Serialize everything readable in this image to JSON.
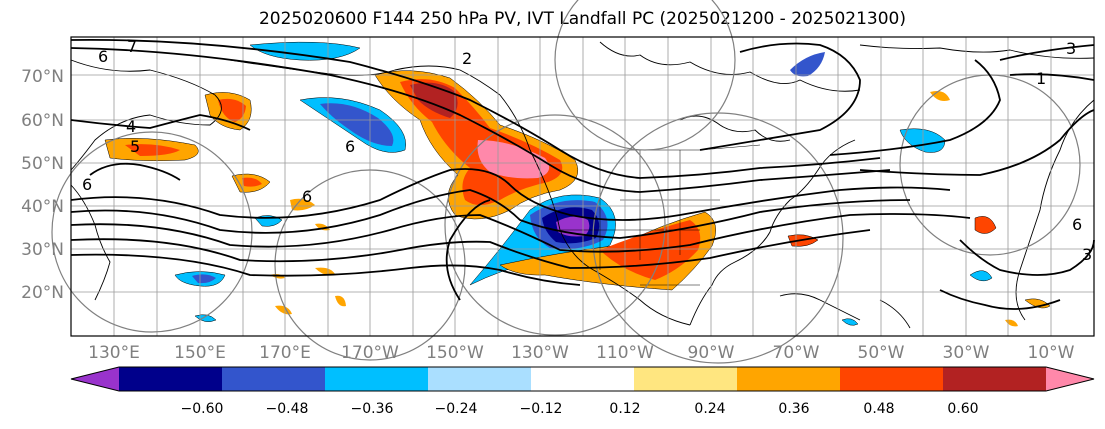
{
  "title": "2025020600 F144 250 hPa PV, IVT Landfall PC (2025021200 - 2025021300)",
  "map": {
    "lat_labels": [
      "70°N",
      "60°N",
      "50°N",
      "40°N",
      "30°N",
      "20°N"
    ],
    "lon_labels": [
      "130°E",
      "150°E",
      "170°E",
      "170°W",
      "150°W",
      "130°W",
      "110°W",
      "90°W",
      "70°W",
      "50°W",
      "30°W",
      "10°W"
    ],
    "contour_labels": [
      "7",
      "6",
      "2",
      "3",
      "1",
      "4",
      "5",
      "6",
      "6",
      "6",
      "6",
      "3"
    ],
    "colors": {
      "land_outline": "#000000",
      "grid": "#9a9a9a",
      "contour": "#000000",
      "circle": "#808080"
    }
  },
  "colorbar": {
    "ticks": [
      "−0.60",
      "−0.48",
      "−0.36",
      "−0.24",
      "−0.12",
      "0.12",
      "0.24",
      "0.36",
      "0.48",
      "0.60"
    ],
    "colors": [
      "#9933cc",
      "#00008b",
      "#3355cc",
      "#00bfff",
      "#aadfff",
      "#ffffff",
      "#ffe680",
      "#ffa500",
      "#ff4500",
      "#b22222",
      "#ff88aa"
    ]
  }
}
